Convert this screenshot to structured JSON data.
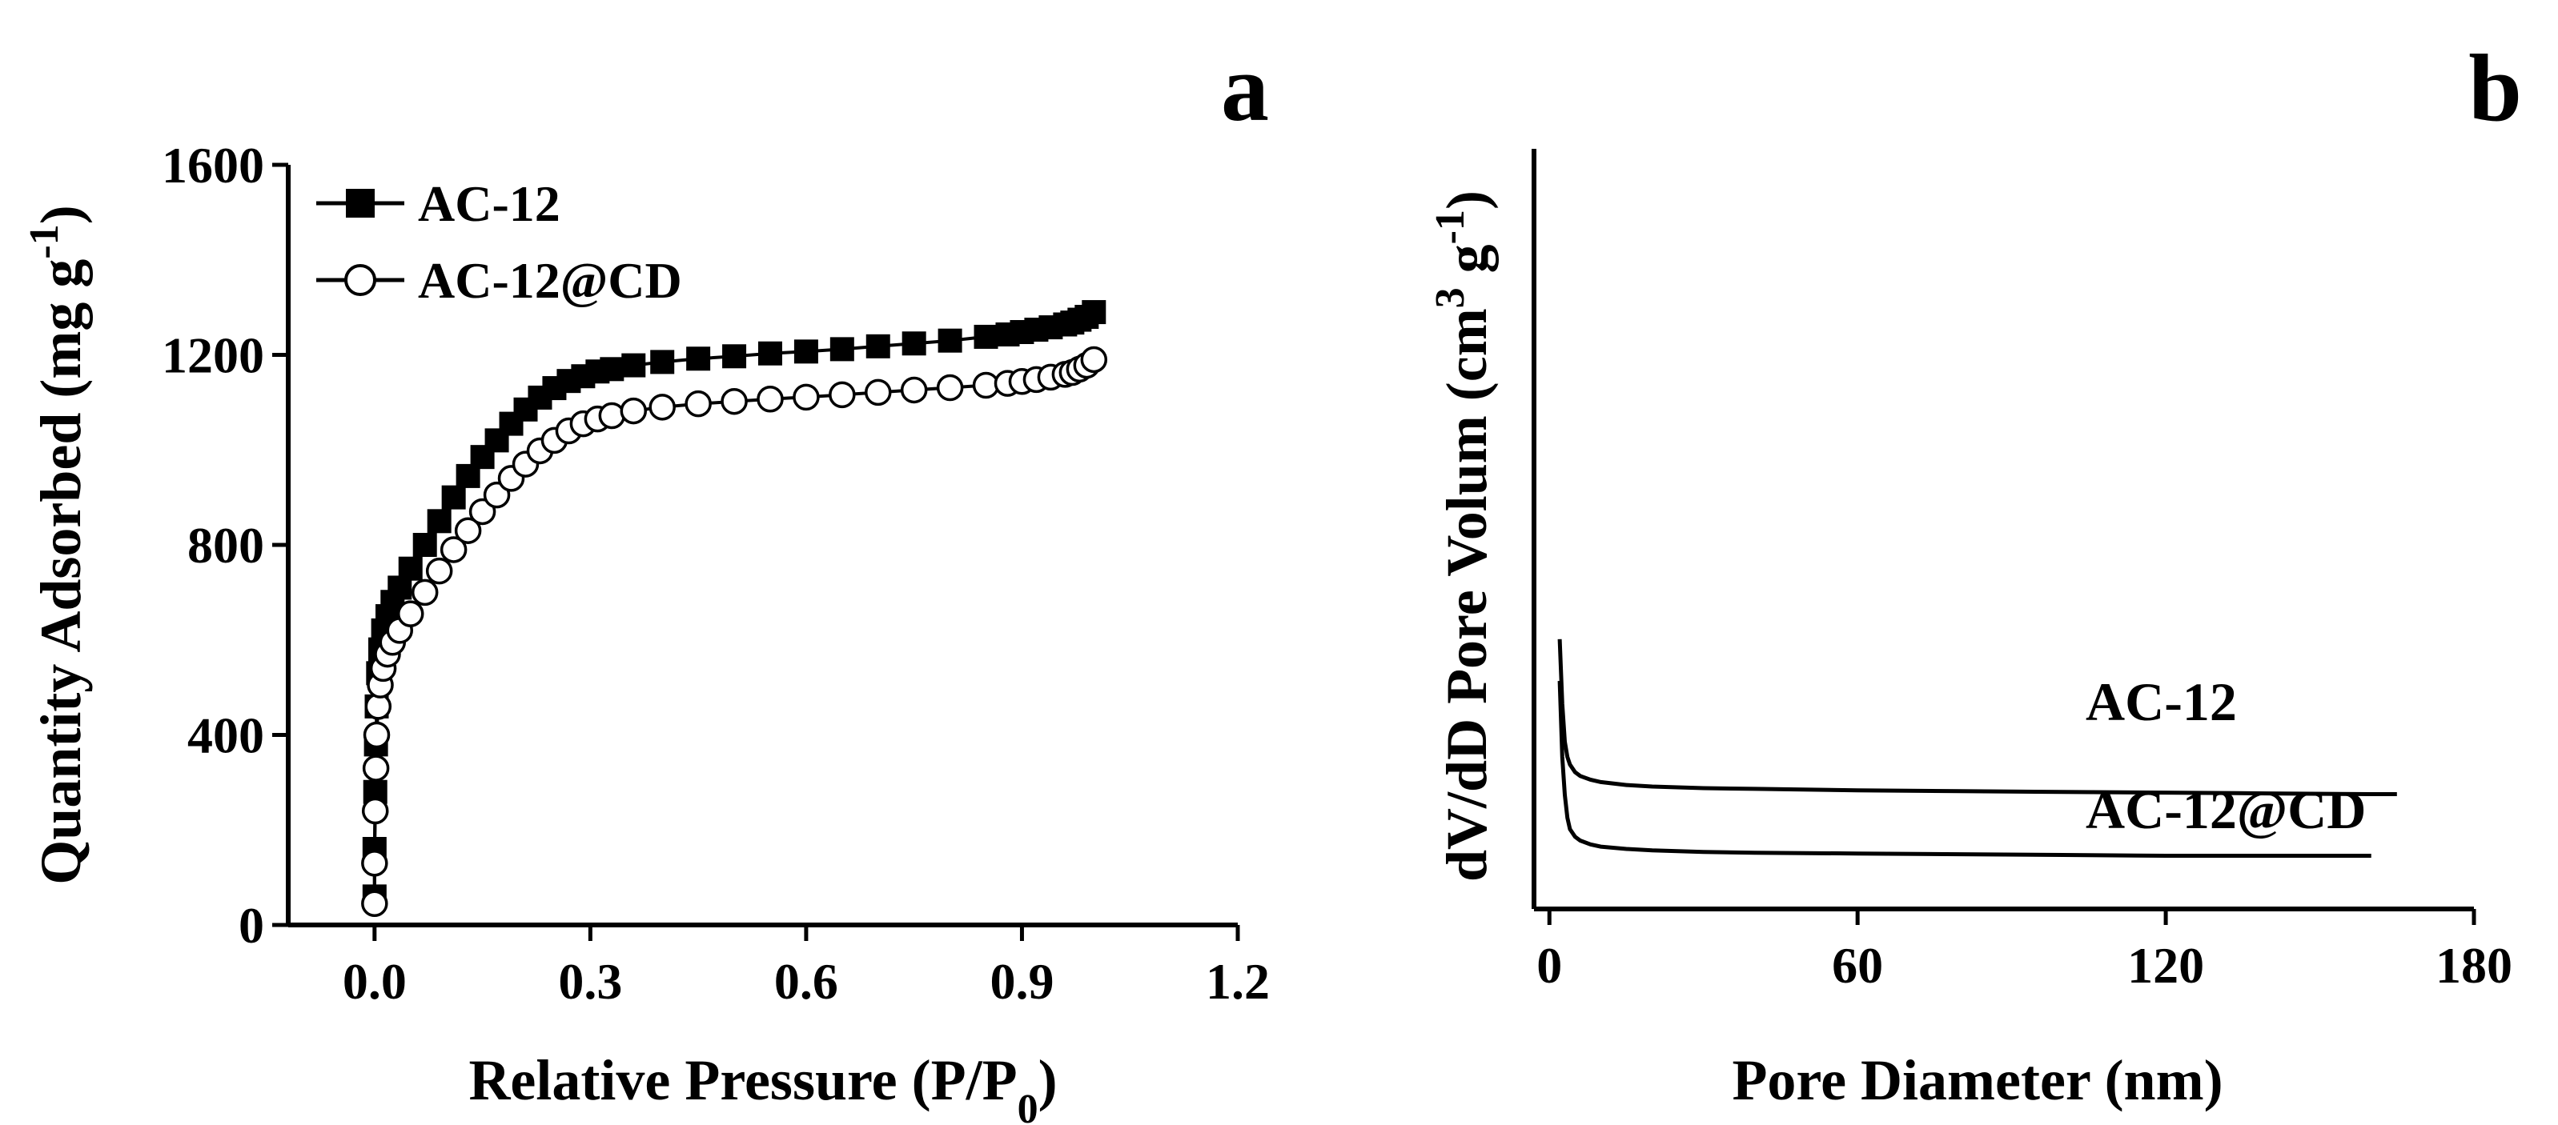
{
  "chart_data": [
    {
      "type": "scatter",
      "panel_label": "a",
      "xlabel_main": "Relative Pressure (P/P",
      "xlabel_sub": "0",
      "xlabel_tail": ")",
      "ylabel_main": "Quantity Adsorbed (mg g",
      "ylabel_sup": "-1",
      "ylabel_tail": ")",
      "xlim": [
        -0.12,
        1.2
      ],
      "ylim": [
        0,
        1600
      ],
      "x_ticks": [
        0.0,
        0.3,
        0.6,
        0.9,
        1.2
      ],
      "x_tick_labels": [
        "0.0",
        "0.3",
        "0.6",
        "0.9",
        "1.2"
      ],
      "y_ticks": [
        0,
        400,
        800,
        1200,
        1600
      ],
      "y_tick_labels": [
        "0",
        "400",
        "800",
        "1200",
        "1600"
      ],
      "legend_position": "top-left",
      "series": [
        {
          "name": "AC-12",
          "marker": "filled-square",
          "x": [
            0.0,
            0.0,
            0.001,
            0.002,
            0.003,
            0.005,
            0.008,
            0.012,
            0.018,
            0.025,
            0.035,
            0.05,
            0.07,
            0.09,
            0.11,
            0.13,
            0.15,
            0.17,
            0.19,
            0.21,
            0.23,
            0.25,
            0.27,
            0.29,
            0.31,
            0.33,
            0.36,
            0.4,
            0.45,
            0.5,
            0.55,
            0.6,
            0.65,
            0.7,
            0.75,
            0.8,
            0.85,
            0.88,
            0.9,
            0.92,
            0.94,
            0.96,
            0.97,
            0.98,
            0.99,
            1.0
          ],
          "y": [
            60,
            160,
            280,
            380,
            460,
            530,
            580,
            620,
            650,
            680,
            710,
            750,
            800,
            850,
            900,
            945,
            985,
            1020,
            1055,
            1085,
            1110,
            1130,
            1145,
            1155,
            1165,
            1170,
            1178,
            1185,
            1192,
            1197,
            1203,
            1207,
            1212,
            1218,
            1224,
            1230,
            1238,
            1243,
            1248,
            1253,
            1258,
            1264,
            1268,
            1274,
            1280,
            1290
          ]
        },
        {
          "name": "AC-12@CD",
          "marker": "open-circle",
          "x": [
            0.0,
            0.0,
            0.001,
            0.002,
            0.003,
            0.005,
            0.008,
            0.012,
            0.018,
            0.025,
            0.035,
            0.05,
            0.07,
            0.09,
            0.11,
            0.13,
            0.15,
            0.17,
            0.19,
            0.21,
            0.23,
            0.25,
            0.27,
            0.29,
            0.31,
            0.33,
            0.36,
            0.4,
            0.45,
            0.5,
            0.55,
            0.6,
            0.65,
            0.7,
            0.75,
            0.8,
            0.85,
            0.88,
            0.9,
            0.92,
            0.94,
            0.96,
            0.97,
            0.98,
            0.99,
            1.0
          ],
          "y": [
            45,
            130,
            240,
            330,
            400,
            460,
            505,
            540,
            570,
            595,
            620,
            655,
            700,
            745,
            790,
            830,
            870,
            905,
            940,
            970,
            998,
            1020,
            1040,
            1055,
            1065,
            1072,
            1082,
            1090,
            1097,
            1102,
            1107,
            1111,
            1116,
            1121,
            1126,
            1131,
            1136,
            1140,
            1144,
            1148,
            1153,
            1159,
            1163,
            1170,
            1178,
            1190
          ]
        }
      ]
    },
    {
      "type": "line",
      "panel_label": "b",
      "xlabel": "Pore Diameter (nm)",
      "ylabel_main": "dV/dD Pore Volum (cm",
      "ylabel_sup1": "3",
      "ylabel_mid": " g",
      "ylabel_sup2": "-1",
      "ylabel_tail": ")",
      "xlim": [
        -3,
        180
      ],
      "ylim": [
        0,
        1
      ],
      "x_ticks": [
        0,
        60,
        120,
        180
      ],
      "x_tick_labels": [
        "0",
        "60",
        "120",
        "180"
      ],
      "y_ticks_shown": false,
      "series": [
        {
          "name": "AC-12",
          "x": [
            2,
            2.5,
            3,
            3.5,
            4,
            5,
            6,
            8,
            10,
            15,
            20,
            30,
            40,
            60,
            80,
            100,
            120,
            140,
            160,
            165
          ],
          "y": [
            0.355,
            0.27,
            0.22,
            0.2,
            0.19,
            0.18,
            0.175,
            0.17,
            0.167,
            0.163,
            0.161,
            0.159,
            0.158,
            0.156,
            0.155,
            0.154,
            0.153,
            0.152,
            0.151,
            0.151
          ]
        },
        {
          "name": "AC-12@CD",
          "x": [
            2,
            2.5,
            3,
            3.5,
            4,
            5,
            6,
            8,
            10,
            15,
            20,
            30,
            40,
            60,
            80,
            100,
            120,
            140,
            160
          ],
          "y": [
            0.3,
            0.2,
            0.15,
            0.12,
            0.105,
            0.095,
            0.09,
            0.085,
            0.082,
            0.079,
            0.077,
            0.075,
            0.074,
            0.073,
            0.072,
            0.071,
            0.07,
            0.07,
            0.07
          ]
        }
      ]
    }
  ]
}
